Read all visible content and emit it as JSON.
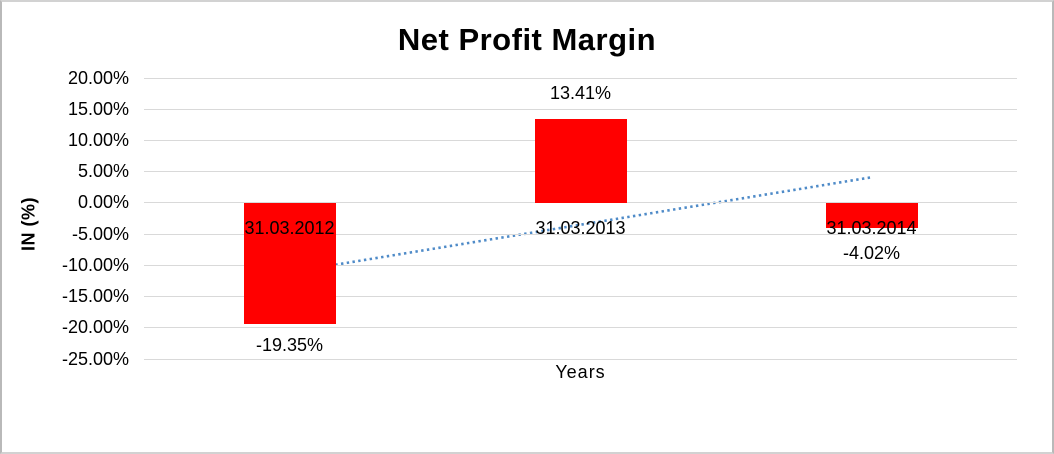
{
  "window": {
    "background": "#FFFFFF",
    "frame_border_color": "#B9B9B9"
  },
  "chart_data": {
    "type": "bar",
    "title": "Net Profit Margin",
    "categories": [
      "31.03.2012",
      "31.03.2013",
      "31.03.2014"
    ],
    "values": [
      -19.35,
      13.41,
      -4.02
    ],
    "data_labels": [
      "-19.35%",
      "13.41%",
      "-4.02%"
    ],
    "xlabel": "Years",
    "ylabel": "IN (%)",
    "ylim": [
      -25,
      20
    ],
    "ytick_step": 5,
    "ytick_labels": [
      "20.00%",
      "15.00%",
      "10.00%",
      "5.00%",
      "0.00%",
      "-5.00%",
      "-10.00%",
      "-15.00%",
      "-20.00%",
      "-25.00%"
    ],
    "grid": true,
    "legend_position": "none",
    "bar_color": "#FF0000",
    "gridline_color": "#D9D9D9",
    "text_color": "#000000",
    "trendline": {
      "type": "linear",
      "style": "dotted",
      "color": "#4F8BC8",
      "start_value": -11.1,
      "end_value": 4.1
    }
  }
}
